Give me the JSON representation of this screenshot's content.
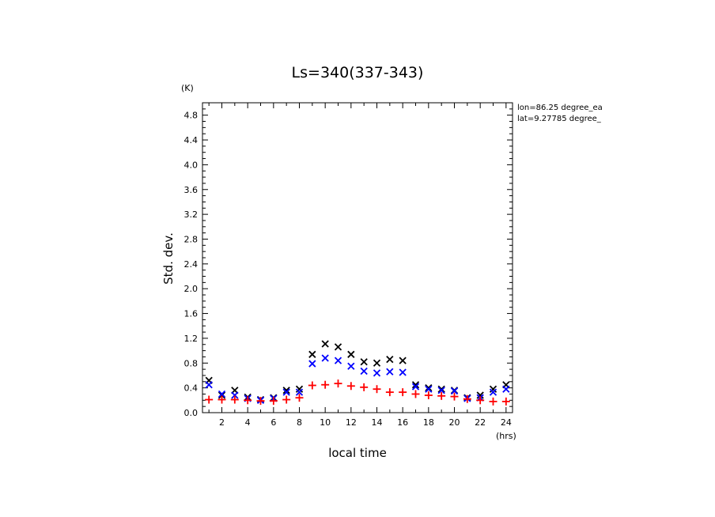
{
  "chart_data": {
    "type": "scatter",
    "title": "Ls=340(337-343)",
    "xlabel": "local time",
    "ylabel": "Std. dev.",
    "x_unit": "(hrs)",
    "y_unit": "(K)",
    "xlim": [
      0.5,
      24.5
    ],
    "ylim": [
      0.0,
      5.0
    ],
    "x_ticks": [
      2,
      4,
      6,
      8,
      10,
      12,
      14,
      16,
      18,
      20,
      22,
      24
    ],
    "y_ticks": [
      0.0,
      0.4,
      0.8,
      1.2,
      1.6,
      2.0,
      2.4,
      2.8,
      3.2,
      3.6,
      4.0,
      4.4,
      4.8
    ],
    "info_lines": [
      "lon=86.25 degree_ea",
      "lat=9.27785 degree_"
    ],
    "grid": false,
    "series": [
      {
        "marker": "x",
        "color": "#000000",
        "x": [
          1,
          2,
          3,
          4,
          5,
          6,
          7,
          8,
          9,
          10,
          11,
          12,
          13,
          14,
          15,
          16,
          17,
          18,
          19,
          20,
          21,
          22,
          23,
          24
        ],
        "y": [
          0.52,
          0.28,
          0.36,
          0.25,
          0.21,
          0.24,
          0.36,
          0.38,
          0.94,
          1.11,
          1.06,
          0.94,
          0.82,
          0.8,
          0.86,
          0.84,
          0.45,
          0.4,
          0.38,
          0.36,
          0.24,
          0.28,
          0.38,
          0.45
        ]
      },
      {
        "marker": "x",
        "color": "#0000ff",
        "x": [
          1,
          2,
          3,
          4,
          5,
          6,
          7,
          8,
          9,
          10,
          11,
          12,
          13,
          14,
          15,
          16,
          17,
          18,
          19,
          20,
          21,
          22,
          23,
          24
        ],
        "y": [
          0.45,
          0.3,
          0.28,
          0.23,
          0.2,
          0.23,
          0.33,
          0.33,
          0.79,
          0.88,
          0.84,
          0.75,
          0.67,
          0.64,
          0.66,
          0.65,
          0.42,
          0.38,
          0.36,
          0.35,
          0.23,
          0.24,
          0.33,
          0.38
        ]
      },
      {
        "marker": "+",
        "color": "#ff0000",
        "x": [
          1,
          2,
          3,
          4,
          5,
          6,
          7,
          8,
          9,
          10,
          11,
          12,
          13,
          14,
          15,
          16,
          17,
          18,
          19,
          20,
          21,
          22,
          23,
          24
        ],
        "y": [
          0.21,
          0.21,
          0.21,
          0.2,
          0.19,
          0.19,
          0.21,
          0.24,
          0.44,
          0.45,
          0.47,
          0.43,
          0.41,
          0.38,
          0.33,
          0.33,
          0.3,
          0.28,
          0.27,
          0.26,
          0.22,
          0.2,
          0.18,
          0.18
        ]
      }
    ]
  }
}
